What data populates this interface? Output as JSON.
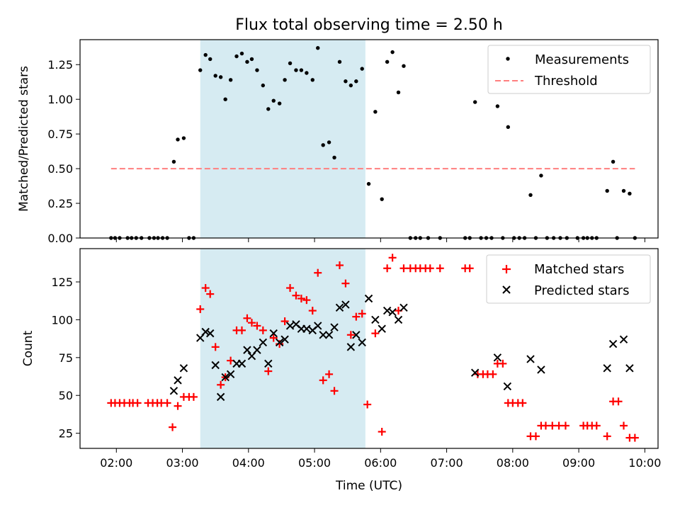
{
  "colors": {
    "measurement": "#000000",
    "threshold": "#ff7f7f",
    "matched": "#ff0000",
    "predicted": "#000000",
    "shade": "#add8e6"
  },
  "chart_data": [
    {
      "type": "scatter",
      "title": "Flux total observing time = 2.50 h",
      "xlabel": "",
      "ylabel": "Matched/Predicted stars",
      "ylim": [
        0,
        1.43
      ],
      "yticks": [
        "0.00",
        "0.25",
        "0.50",
        "0.75",
        "1.00",
        "1.25"
      ],
      "x_axis": "time (UTC, hours)",
      "xlim": [
        1.45,
        10.2
      ],
      "grid": false,
      "legend": "upper right",
      "shaded_interval": [
        3.27,
        5.77
      ],
      "series": [
        {
          "name": "Measurements",
          "marker": "dot",
          "points": [
            [
              1.92,
              0
            ],
            [
              1.98,
              0
            ],
            [
              2.05,
              0
            ],
            [
              2.17,
              0
            ],
            [
              2.23,
              0
            ],
            [
              2.3,
              0
            ],
            [
              2.38,
              0
            ],
            [
              2.5,
              0
            ],
            [
              2.57,
              0
            ],
            [
              2.63,
              0
            ],
            [
              2.7,
              0
            ],
            [
              2.77,
              0
            ],
            [
              2.87,
              0.55
            ],
            [
              2.93,
              0.71
            ],
            [
              3.02,
              0.72
            ],
            [
              3.1,
              0
            ],
            [
              3.17,
              0
            ],
            [
              3.27,
              1.21
            ],
            [
              3.35,
              1.32
            ],
            [
              3.42,
              1.29
            ],
            [
              3.5,
              1.17
            ],
            [
              3.58,
              1.16
            ],
            [
              3.65,
              1.0
            ],
            [
              3.73,
              1.14
            ],
            [
              3.82,
              1.31
            ],
            [
              3.9,
              1.33
            ],
            [
              3.98,
              1.27
            ],
            [
              4.05,
              1.29
            ],
            [
              4.13,
              1.21
            ],
            [
              4.22,
              1.1
            ],
            [
              4.3,
              0.93
            ],
            [
              4.38,
              0.99
            ],
            [
              4.47,
              0.97
            ],
            [
              4.55,
              1.14
            ],
            [
              4.63,
              1.26
            ],
            [
              4.72,
              1.21
            ],
            [
              4.8,
              1.21
            ],
            [
              4.88,
              1.19
            ],
            [
              4.97,
              1.14
            ],
            [
              5.05,
              1.37
            ],
            [
              5.13,
              0.67
            ],
            [
              5.22,
              0.69
            ],
            [
              5.3,
              0.58
            ],
            [
              5.38,
              1.27
            ],
            [
              5.47,
              1.13
            ],
            [
              5.55,
              1.1
            ],
            [
              5.63,
              1.13
            ],
            [
              5.72,
              1.22
            ],
            [
              5.82,
              0.39
            ],
            [
              5.92,
              0.91
            ],
            [
              6.02,
              0.28
            ],
            [
              6.1,
              1.27
            ],
            [
              6.18,
              1.34
            ],
            [
              6.27,
              1.05
            ],
            [
              6.35,
              1.24
            ],
            [
              6.45,
              0
            ],
            [
              6.53,
              0
            ],
            [
              6.6,
              0
            ],
            [
              6.72,
              0
            ],
            [
              6.9,
              0
            ],
            [
              7.28,
              0
            ],
            [
              7.35,
              0
            ],
            [
              7.43,
              0.98
            ],
            [
              7.52,
              0
            ],
            [
              7.6,
              0
            ],
            [
              7.68,
              0
            ],
            [
              7.77,
              0.95
            ],
            [
              7.85,
              0
            ],
            [
              7.93,
              0.8
            ],
            [
              8.02,
              0
            ],
            [
              8.1,
              0
            ],
            [
              8.18,
              0
            ],
            [
              8.27,
              0.31
            ],
            [
              8.35,
              0
            ],
            [
              8.43,
              0.45
            ],
            [
              8.52,
              0
            ],
            [
              8.62,
              0
            ],
            [
              8.72,
              0
            ],
            [
              8.82,
              0
            ],
            [
              8.98,
              0
            ],
            [
              9.07,
              0
            ],
            [
              9.13,
              0
            ],
            [
              9.2,
              0
            ],
            [
              9.27,
              0
            ],
            [
              9.43,
              0.34
            ],
            [
              9.52,
              0.55
            ],
            [
              9.58,
              0
            ],
            [
              9.68,
              0.34
            ],
            [
              9.77,
              0.32
            ],
            [
              9.85,
              0
            ]
          ]
        },
        {
          "name": "Threshold",
          "style": "dashed line",
          "points": [
            [
              1.92,
              0.5
            ],
            [
              9.85,
              0.5
            ]
          ]
        }
      ]
    },
    {
      "type": "scatter",
      "title": "",
      "xlabel": "Time (UTC)",
      "ylabel": "Count",
      "ylim": [
        15,
        147
      ],
      "yticks": [
        "25",
        "50",
        "75",
        "100",
        "125"
      ],
      "x_axis": "time (UTC, hours)",
      "xlim": [
        1.45,
        10.2
      ],
      "xticks": [
        "02:00",
        "03:00",
        "04:00",
        "05:00",
        "06:00",
        "07:00",
        "08:00",
        "09:00",
        "10:00"
      ],
      "grid": false,
      "legend": "upper right",
      "shaded_interval": [
        3.27,
        5.77
      ],
      "series": [
        {
          "name": "Matched stars",
          "marker": "plus",
          "points": [
            [
              1.92,
              45
            ],
            [
              1.98,
              45
            ],
            [
              2.05,
              45
            ],
            [
              2.12,
              45
            ],
            [
              2.2,
              45
            ],
            [
              2.25,
              45
            ],
            [
              2.32,
              45
            ],
            [
              2.48,
              45
            ],
            [
              2.55,
              45
            ],
            [
              2.62,
              45
            ],
            [
              2.68,
              45
            ],
            [
              2.77,
              45
            ],
            [
              2.85,
              29
            ],
            [
              2.93,
              43
            ],
            [
              3.02,
              49
            ],
            [
              3.1,
              49
            ],
            [
              3.17,
              49
            ],
            [
              3.27,
              107
            ],
            [
              3.35,
              121
            ],
            [
              3.42,
              117
            ],
            [
              3.5,
              82
            ],
            [
              3.58,
              57
            ],
            [
              3.65,
              62
            ],
            [
              3.73,
              73
            ],
            [
              3.82,
              93
            ],
            [
              3.9,
              93
            ],
            [
              3.98,
              101
            ],
            [
              4.05,
              98
            ],
            [
              4.13,
              96
            ],
            [
              4.22,
              93
            ],
            [
              4.3,
              66
            ],
            [
              4.38,
              88
            ],
            [
              4.47,
              84
            ],
            [
              4.55,
              99
            ],
            [
              4.63,
              121
            ],
            [
              4.72,
              116
            ],
            [
              4.8,
              114
            ],
            [
              4.88,
              113
            ],
            [
              4.97,
              106
            ],
            [
              5.05,
              131
            ],
            [
              5.13,
              60
            ],
            [
              5.22,
              64
            ],
            [
              5.3,
              53
            ],
            [
              5.38,
              136
            ],
            [
              5.47,
              124
            ],
            [
              5.55,
              90
            ],
            [
              5.63,
              102
            ],
            [
              5.72,
              104
            ],
            [
              5.8,
              44
            ],
            [
              5.92,
              91
            ],
            [
              6.02,
              26
            ],
            [
              6.1,
              134
            ],
            [
              6.18,
              141
            ],
            [
              6.27,
              106
            ],
            [
              6.35,
              134
            ],
            [
              6.45,
              134
            ],
            [
              6.53,
              134
            ],
            [
              6.6,
              134
            ],
            [
              6.68,
              134
            ],
            [
              6.75,
              134
            ],
            [
              6.9,
              134
            ],
            [
              7.28,
              134
            ],
            [
              7.35,
              134
            ],
            [
              7.47,
              64
            ],
            [
              7.55,
              64
            ],
            [
              7.62,
              64
            ],
            [
              7.7,
              64
            ],
            [
              7.77,
              71
            ],
            [
              7.85,
              71
            ],
            [
              7.93,
              45
            ],
            [
              8.0,
              45
            ],
            [
              8.08,
              45
            ],
            [
              8.15,
              45
            ],
            [
              8.27,
              23
            ],
            [
              8.35,
              23
            ],
            [
              8.43,
              30
            ],
            [
              8.5,
              30
            ],
            [
              8.6,
              30
            ],
            [
              8.7,
              30
            ],
            [
              8.8,
              30
            ],
            [
              9.07,
              30
            ],
            [
              9.13,
              30
            ],
            [
              9.2,
              30
            ],
            [
              9.27,
              30
            ],
            [
              9.43,
              23
            ],
            [
              9.52,
              46
            ],
            [
              9.6,
              46
            ],
            [
              9.68,
              30
            ],
            [
              9.77,
              22
            ],
            [
              9.85,
              22
            ]
          ]
        },
        {
          "name": "Predicted stars",
          "marker": "x",
          "points": [
            [
              2.87,
              53
            ],
            [
              2.93,
              60
            ],
            [
              3.02,
              68
            ],
            [
              3.27,
              88
            ],
            [
              3.35,
              92
            ],
            [
              3.42,
              91
            ],
            [
              3.5,
              70
            ],
            [
              3.58,
              49
            ],
            [
              3.65,
              62
            ],
            [
              3.73,
              64
            ],
            [
              3.82,
              71
            ],
            [
              3.9,
              71
            ],
            [
              3.98,
              80
            ],
            [
              4.05,
              76
            ],
            [
              4.13,
              80
            ],
            [
              4.22,
              85
            ],
            [
              4.3,
              71
            ],
            [
              4.38,
              91
            ],
            [
              4.47,
              85
            ],
            [
              4.55,
              87
            ],
            [
              4.63,
              96
            ],
            [
              4.72,
              97
            ],
            [
              4.8,
              94
            ],
            [
              4.88,
              94
            ],
            [
              4.97,
              93
            ],
            [
              5.05,
              96
            ],
            [
              5.13,
              90
            ],
            [
              5.22,
              90
            ],
            [
              5.3,
              95
            ],
            [
              5.38,
              108
            ],
            [
              5.47,
              110
            ],
            [
              5.55,
              82
            ],
            [
              5.63,
              90
            ],
            [
              5.72,
              85
            ],
            [
              5.82,
              114
            ],
            [
              5.92,
              100
            ],
            [
              6.02,
              94
            ],
            [
              6.1,
              106
            ],
            [
              6.18,
              105
            ],
            [
              6.27,
              100
            ],
            [
              6.35,
              108
            ],
            [
              7.43,
              65
            ],
            [
              7.77,
              75
            ],
            [
              7.92,
              56
            ],
            [
              8.27,
              74
            ],
            [
              8.43,
              67
            ],
            [
              9.43,
              68
            ],
            [
              9.52,
              84
            ],
            [
              9.68,
              87
            ],
            [
              9.77,
              68
            ]
          ]
        }
      ]
    }
  ]
}
